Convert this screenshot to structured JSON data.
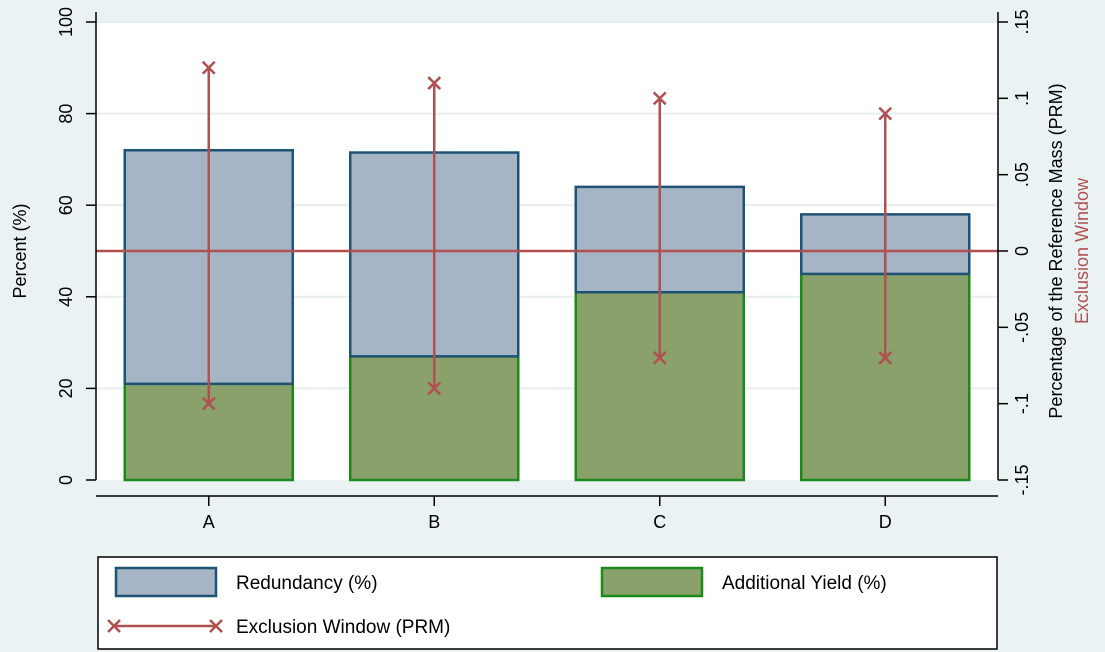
{
  "chart_data": {
    "type": "bar",
    "stacked": true,
    "categories": [
      "A",
      "B",
      "C",
      "D"
    ],
    "series": [
      {
        "name": "Additional Yield (%)",
        "axis": "left",
        "values": [
          21,
          27,
          41,
          45
        ],
        "color": "#8aa16b",
        "edge": "#1a8a1a"
      },
      {
        "name": "Redundancy (%)",
        "axis": "left",
        "values": [
          51,
          44.5,
          23,
          13
        ],
        "color": "#a6b5c5",
        "edge": "#1f5376"
      },
      {
        "name": "Exclusion Window (PRM)",
        "axis": "right",
        "type": "range",
        "low": [
          -0.1,
          -0.09,
          -0.07,
          -0.07
        ],
        "high": [
          0.12,
          0.11,
          0.1,
          0.09
        ],
        "color": "#b05050"
      }
    ],
    "reference_line": {
      "axis": "right",
      "value": 0,
      "color": "#b05050"
    },
    "ylabel": "Percent (%)",
    "ylim": [
      0,
      100
    ],
    "yticks": [
      "0",
      "20",
      "40",
      "60",
      "80",
      "100"
    ],
    "y2label": "Percentage of the Reference Mass (PRM)",
    "y2label_secondary": "Exclusion Window",
    "y2lim": [
      -0.15,
      0.15
    ],
    "y2ticks": [
      "-.15",
      "-.1",
      "-.05",
      "0",
      ".05",
      ".1",
      ".15"
    ],
    "grid": true,
    "legend_position": "bottom",
    "legend": [
      "Redundancy (%)",
      "Additional Yield (%)",
      "Exclusion Window (PRM)"
    ]
  }
}
